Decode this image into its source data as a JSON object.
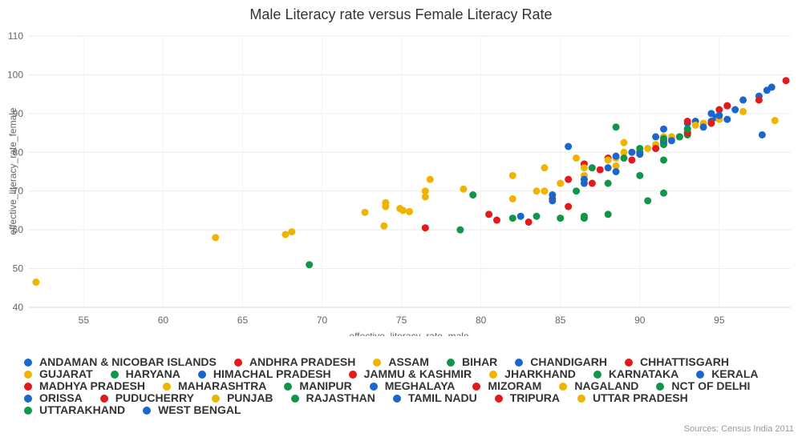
{
  "chart_data": {
    "type": "scatter",
    "title": "Male Literacy rate versus Female Literacy Rate",
    "xlabel": "effective_literacy_rate_male",
    "ylabel": "effective_literacy_rate_female",
    "xlim": [
      51.5,
      99.5
    ],
    "ylim": [
      40,
      110
    ],
    "xticks": [
      55,
      60,
      65,
      70,
      75,
      80,
      85,
      90,
      95
    ],
    "yticks": [
      40,
      50,
      60,
      70,
      80,
      90,
      100,
      110
    ],
    "grid": true,
    "legend_position": "bottom",
    "source": "Sources: Census India 2011",
    "series": [
      {
        "name": "ANDAMAN & NICOBAR ISLANDS",
        "color": "#1a66cc",
        "points": [
          [
            91.5,
            86.0
          ],
          [
            93.0,
            87.5
          ],
          [
            94.8,
            89.0
          ]
        ]
      },
      {
        "name": "ANDHRA PRADESH",
        "color": "#e31a1c",
        "points": [
          [
            86.5,
            77.0
          ],
          [
            88.0,
            78.5
          ],
          [
            90.0,
            80.0
          ]
        ]
      },
      {
        "name": "ASSAM",
        "color": "#f0b400",
        "points": [
          [
            83.5,
            70.0
          ],
          [
            85.0,
            72.0
          ],
          [
            86.5,
            74.0
          ],
          [
            88.5,
            76.5
          ]
        ]
      },
      {
        "name": "BIHAR",
        "color": "#109648",
        "points": [
          [
            79.5,
            69.0
          ],
          [
            82.0,
            63.0
          ],
          [
            85.0,
            63.0
          ],
          [
            86.5,
            63.0
          ]
        ]
      },
      {
        "name": "CHANDIGARH",
        "color": "#1a66cc",
        "points": [
          [
            93.5,
            88.0
          ],
          [
            94.5,
            90.0
          ]
        ]
      },
      {
        "name": "CHHATTISGARH",
        "color": "#e31a1c",
        "points": [
          [
            85.5,
            73.0
          ],
          [
            87.5,
            75.5
          ],
          [
            89.5,
            78.0
          ]
        ]
      },
      {
        "name": "GUJARAT",
        "color": "#f0b400",
        "points": [
          [
            74.0,
            67.0
          ],
          [
            76.5,
            70.0
          ],
          [
            89.0,
            80.0
          ],
          [
            92.0,
            84.0
          ],
          [
            94.0,
            87.5
          ]
        ]
      },
      {
        "name": "HARYANA",
        "color": "#109648",
        "points": [
          [
            86.0,
            70.0
          ],
          [
            88.0,
            72.0
          ],
          [
            90.0,
            74.0
          ],
          [
            91.5,
            78.0
          ]
        ]
      },
      {
        "name": "HIMACHAL PRADESH",
        "color": "#1a66cc",
        "points": [
          [
            92.5,
            84.0
          ],
          [
            94.0,
            86.5
          ],
          [
            95.5,
            88.5
          ],
          [
            96.0,
            91.0
          ]
        ]
      },
      {
        "name": "JAMMU & KASHMIR",
        "color": "#e31a1c",
        "points": [
          [
            80.5,
            64.0
          ],
          [
            83.0,
            62.0
          ],
          [
            85.5,
            66.0
          ]
        ]
      },
      {
        "name": "JHARKHAND",
        "color": "#f0b400",
        "points": [
          [
            82.0,
            68.0
          ],
          [
            84.0,
            70.0
          ],
          [
            86.5,
            73.0
          ]
        ]
      },
      {
        "name": "KARNATAKA",
        "color": "#109648",
        "points": [
          [
            87.0,
            76.0
          ],
          [
            89.0,
            78.5
          ],
          [
            91.0,
            81.0
          ],
          [
            92.5,
            84.0
          ]
        ]
      },
      {
        "name": "KERALA",
        "color": "#1a66cc",
        "points": [
          [
            95.5,
            92.0
          ],
          [
            96.5,
            93.5
          ],
          [
            97.5,
            94.5
          ],
          [
            98.0,
            96.0
          ],
          [
            98.3,
            96.8
          ]
        ]
      },
      {
        "name": "MADHYA PRADESH",
        "color": "#e31a1c",
        "points": [
          [
            76.5,
            60.5
          ],
          [
            81.0,
            62.5
          ],
          [
            84.5,
            68.0
          ],
          [
            87.0,
            72.0
          ]
        ]
      },
      {
        "name": "MAHARASHTRA",
        "color": "#f0b400",
        "points": [
          [
            88.5,
            78.5
          ],
          [
            91.0,
            82.0
          ],
          [
            93.0,
            85.0
          ],
          [
            95.0,
            88.5
          ],
          [
            96.5,
            90.5
          ]
        ]
      },
      {
        "name": "MANIPUR",
        "color": "#109648",
        "points": [
          [
            90.0,
            80.0
          ],
          [
            91.5,
            82.5
          ],
          [
            93.0,
            85.0
          ]
        ]
      },
      {
        "name": "MEGHALAYA",
        "color": "#1a66cc",
        "points": [
          [
            85.5,
            81.5
          ],
          [
            88.5,
            79.0
          ],
          [
            91.0,
            84.0
          ]
        ]
      },
      {
        "name": "MIZORAM",
        "color": "#e31a1c",
        "points": [
          [
            95.5,
            92.0
          ],
          [
            97.5,
            93.5
          ],
          [
            99.2,
            98.5
          ]
        ]
      },
      {
        "name": "NAGALAND",
        "color": "#f0b400",
        "points": [
          [
            89.0,
            82.5
          ],
          [
            91.5,
            84.0
          ],
          [
            93.5,
            87.0
          ]
        ]
      },
      {
        "name": "NCT OF DELHI",
        "color": "#109648",
        "points": [
          [
            91.5,
            82.0
          ],
          [
            93.0,
            84.5
          ],
          [
            94.5,
            87.5
          ]
        ]
      },
      {
        "name": "ORISSA",
        "color": "#1a66cc",
        "points": [
          [
            82.5,
            63.5
          ],
          [
            84.5,
            67.5
          ],
          [
            86.5,
            72.0
          ],
          [
            88.5,
            75.0
          ]
        ]
      },
      {
        "name": "PUDUCHERRY",
        "color": "#e31a1c",
        "points": [
          [
            93.0,
            88.0
          ],
          [
            95.0,
            91.0
          ]
        ]
      },
      {
        "name": "PUNJAB",
        "color": "#f0b400",
        "points": [
          [
            86.5,
            76.0
          ],
          [
            88.0,
            78.0
          ],
          [
            90.5,
            81.0
          ],
          [
            92.0,
            83.5
          ]
        ]
      },
      {
        "name": "RAJASTHAN",
        "color": "#109648",
        "points": [
          [
            69.2,
            51.0
          ],
          [
            78.7,
            60.0
          ],
          [
            83.5,
            63.5
          ],
          [
            86.5,
            63.5
          ],
          [
            88.0,
            64.0
          ],
          [
            90.5,
            67.5
          ],
          [
            91.5,
            69.5
          ]
        ]
      },
      {
        "name": "TAMIL NADU",
        "color": "#1a66cc",
        "points": [
          [
            89.5,
            80.0
          ],
          [
            91.5,
            83.0
          ],
          [
            93.0,
            86.0
          ],
          [
            94.5,
            88.0
          ],
          [
            95.0,
            89.5
          ]
        ]
      },
      {
        "name": "TRIPURA",
        "color": "#e31a1c",
        "points": [
          [
            91.0,
            81.0
          ],
          [
            93.0,
            85.0
          ],
          [
            94.5,
            87.5
          ]
        ]
      },
      {
        "name": "UTTAR PRADESH",
        "color": "#f0b400",
        "points": [
          [
            52.0,
            46.5
          ],
          [
            63.3,
            58.0
          ],
          [
            67.7,
            58.8
          ],
          [
            68.1,
            59.5
          ],
          [
            72.7,
            64.5
          ],
          [
            73.9,
            61.0
          ],
          [
            74.0,
            66.0
          ],
          [
            74.9,
            65.5
          ],
          [
            75.1,
            65.0
          ],
          [
            75.5,
            64.7
          ],
          [
            76.5,
            68.5
          ],
          [
            76.8,
            73.0
          ],
          [
            78.9,
            70.5
          ],
          [
            82.0,
            74.0
          ],
          [
            84.0,
            76.0
          ],
          [
            86.0,
            78.5
          ],
          [
            98.5,
            88.2
          ]
        ]
      },
      {
        "name": "UTTARAKHAND",
        "color": "#109648",
        "points": [
          [
            88.5,
            86.5
          ],
          [
            90.0,
            81.0
          ],
          [
            91.5,
            83.5
          ],
          [
            93.0,
            86.0
          ]
        ]
      },
      {
        "name": "WEST BENGAL",
        "color": "#1a66cc",
        "points": [
          [
            84.5,
            69.0
          ],
          [
            86.5,
            73.0
          ],
          [
            88.0,
            76.0
          ],
          [
            90.0,
            79.5
          ],
          [
            92.0,
            83.0
          ],
          [
            97.7,
            84.5
          ]
        ]
      }
    ]
  }
}
